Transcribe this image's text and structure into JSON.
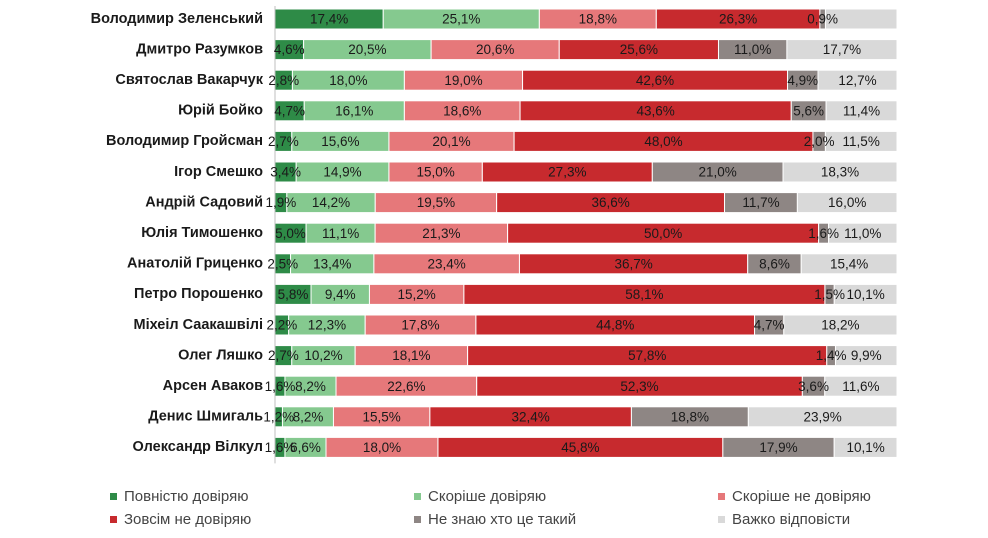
{
  "chart_data": {
    "type": "stacked-bar-horizontal-100",
    "title": "",
    "categories": [
      "Володимир Зеленський",
      "Дмитро Разумков",
      "Святослав Вакарчук",
      "Юрій Бойко",
      "Володимир Гройсман",
      "Ігор Смешко",
      "Андрій Садовий",
      "Юлія Тимошенко",
      "Анатолій Гриценко",
      "Петро Порошенко",
      "Міхеіл Саакашвілі",
      "Олег Ляшко",
      "Арсен Аваков",
      "Денис Шмигаль",
      "Олександр Вілкул"
    ],
    "series": [
      {
        "name": "Повністю довіряю",
        "color": "#2e8b47",
        "values": [
          17.4,
          4.6,
          2.8,
          4.7,
          2.7,
          3.4,
          1.9,
          5.0,
          2.5,
          5.8,
          2.2,
          2.7,
          1.6,
          1.2,
          1.6
        ]
      },
      {
        "name": "Скоріше довіряю",
        "color": "#85c98f",
        "values": [
          25.1,
          20.5,
          18.0,
          16.1,
          15.6,
          14.9,
          14.2,
          11.1,
          13.4,
          9.4,
          12.3,
          10.2,
          8.2,
          8.2,
          6.6
        ]
      },
      {
        "name": "Скоріше не довіряю",
        "color": "#e6787a",
        "values": [
          18.8,
          20.6,
          19.0,
          18.6,
          20.1,
          15.0,
          19.5,
          21.3,
          23.4,
          15.2,
          17.8,
          18.1,
          22.6,
          15.5,
          18.0
        ]
      },
      {
        "name": "Зовсім не довіряю",
        "color": "#c72a2e",
        "values": [
          26.3,
          25.6,
          42.6,
          43.6,
          48.0,
          27.3,
          36.6,
          50.0,
          36.7,
          58.1,
          44.8,
          57.8,
          52.3,
          32.4,
          45.8
        ]
      },
      {
        "name": "Не знаю хто це такий",
        "color": "#8e8684",
        "values": [
          0.9,
          11.0,
          4.9,
          5.6,
          2.0,
          21.0,
          11.7,
          1.6,
          8.6,
          1.5,
          4.7,
          1.4,
          3.6,
          18.8,
          17.9
        ]
      },
      {
        "name": "Важко відповісти",
        "color": "#d9d9d9",
        "values": [
          11.5,
          17.7,
          12.7,
          11.4,
          11.5,
          18.3,
          16.0,
          11.0,
          15.4,
          10.1,
          18.2,
          9.9,
          11.6,
          23.9,
          10.1
        ]
      }
    ],
    "value_labels": [
      [
        "17,4%",
        "25,1%",
        "18,8%",
        "26,3%",
        "0,9%",
        ""
      ],
      [
        "4,6%",
        "20,5%",
        "20,6%",
        "25,6%",
        "11,0%",
        "17,7%"
      ],
      [
        "2,8%",
        "18,0%",
        "19,0%",
        "42,6%",
        "4,9%",
        "12,7%"
      ],
      [
        "4,7%",
        "16,1%",
        "18,6%",
        "43,6%",
        "5,6%",
        "11,4%"
      ],
      [
        "2,7%",
        "15,6%",
        "20,1%",
        "48,0%",
        "2,0%",
        "11,5%"
      ],
      [
        "3,4%",
        "14,9%",
        "15,0%",
        "27,3%",
        "21,0%",
        "18,3%"
      ],
      [
        "1,9%",
        "14,2%",
        "19,5%",
        "36,6%",
        "11,7%",
        "16,0%"
      ],
      [
        "5,0%",
        "11,1%",
        "21,3%",
        "50,0%",
        "1,6%",
        "11,0%"
      ],
      [
        "2,5%",
        "13,4%",
        "23,4%",
        "36,7%",
        "8,6%",
        "15,4%"
      ],
      [
        "5,8%",
        "9,4%",
        "15,2%",
        "58,1%",
        "1,5%",
        "10,1%"
      ],
      [
        "2,2%",
        "12,3%",
        "17,8%",
        "44,8%",
        "4,7%",
        "18,2%"
      ],
      [
        "2,7%",
        "10,2%",
        "18,1%",
        "57,8%",
        "1,4%",
        "9,9%"
      ],
      [
        "1,6%",
        "8,2%",
        "22,6%",
        "52,3%",
        "3,6%",
        "11,6%"
      ],
      [
        "1,2%",
        "8,2%",
        "15,5%",
        "32,4%",
        "18,8%",
        "23,9%"
      ],
      [
        "1,6%",
        "6,6%",
        "18,0%",
        "45,8%",
        "17,9%",
        "10,1%"
      ]
    ],
    "xlim": [
      0,
      100
    ],
    "xlabel": "",
    "ylabel": "",
    "grid": false,
    "legend_position": "bottom",
    "legend_order": [
      0,
      1,
      2,
      3,
      4,
      5
    ]
  }
}
